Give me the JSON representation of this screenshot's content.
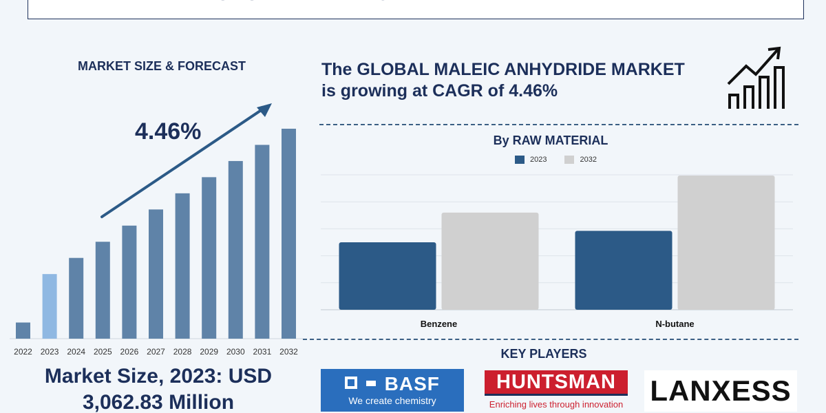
{
  "title": "GLOBAL MALEIC ANHYDRIDE MARKET",
  "left_panel": {
    "heading": "MARKET SIZE & FORECAST",
    "cagr_label": "4.46%",
    "market_size_line1": "Market Size, 2023: USD",
    "market_size_line2": "3,062.83 Million"
  },
  "right_panel": {
    "cagr_line1": "The GLOBAL MALEIC ANHYDRIDE MARKET",
    "cagr_line2": "is growing at CAGR of 4.46%",
    "icon": "growth-chart-icon"
  },
  "key_players": {
    "heading": "KEY PLAYERS",
    "basf": {
      "name": "BASF",
      "tagline": "We create chemistry"
    },
    "huntsman": {
      "name": "HUNTSMAN",
      "tagline": "Enriching lives through innovation"
    },
    "lanxess": {
      "name": "LANXESS"
    }
  },
  "colors": {
    "navy": "#1c2f5a",
    "bar_main": "#5f83a8",
    "bar_highlight": "#8fb8e2",
    "series_2023": "#2c5a87",
    "series_2032": "#d0d0d0"
  },
  "chart_data": [
    {
      "type": "bar",
      "title": "",
      "categories": [
        "2022",
        "2023",
        "2024",
        "2025",
        "2026",
        "2027",
        "2028",
        "2029",
        "2030",
        "2031",
        "2032"
      ],
      "values": [
        1.0,
        4.0,
        5.0,
        6.0,
        7.0,
        8.0,
        9.0,
        10.0,
        11.0,
        12.0,
        13.0
      ],
      "highlight_categories": [
        "2023"
      ],
      "annotation": "4.46%",
      "grid": false
    },
    {
      "type": "bar",
      "title": "By RAW MATERIAL",
      "categories": [
        "Benzene",
        "N-butane"
      ],
      "series": [
        {
          "name": "2023",
          "values": [
            100,
            117
          ]
        },
        {
          "name": "2032",
          "values": [
            144,
            199
          ]
        }
      ],
      "ylim": [
        0,
        200
      ],
      "legend": "top-center",
      "grid": true
    }
  ]
}
